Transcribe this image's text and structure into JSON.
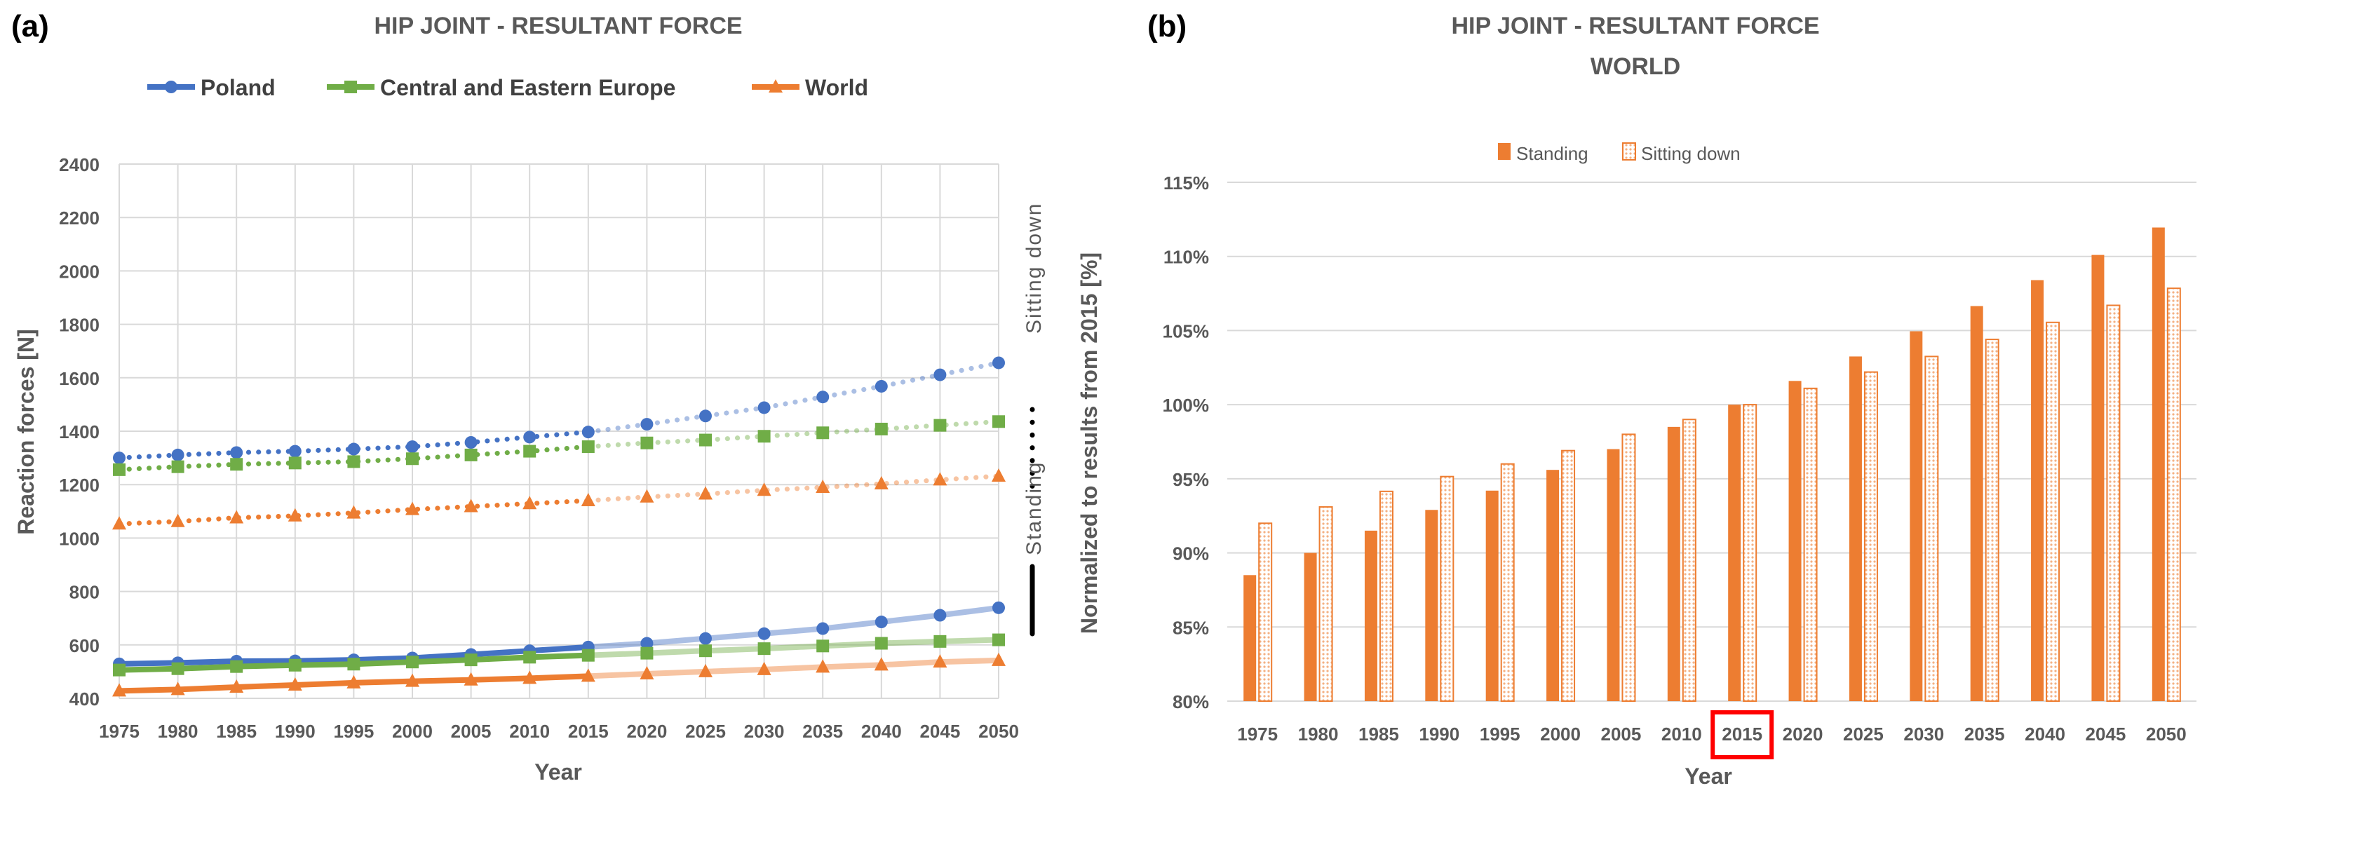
{
  "chart_data": [
    {
      "type": "line",
      "panel_label": "(a)",
      "title": "HIP JOINT - RESULTANT FORCE",
      "xlabel": "Year",
      "ylabel": "Reaction forces [N]",
      "ylim": [
        400,
        2400
      ],
      "yticks": [
        400,
        600,
        800,
        1000,
        1200,
        1400,
        1600,
        1800,
        2000,
        2200,
        2400
      ],
      "x": [
        1975,
        1980,
        1985,
        1990,
        1995,
        2000,
        2005,
        2010,
        2015,
        2020,
        2025,
        2030,
        2035,
        2040,
        2045,
        2050
      ],
      "grid": true,
      "legend_position": "top",
      "side_labels": {
        "sitting": "Sitting down",
        "standing": "Standing"
      },
      "series": [
        {
          "name": "Poland",
          "color": "#4472C4",
          "marker": "circle",
          "standing": [
            529,
            533,
            539,
            540,
            544,
            551,
            564,
            578,
            592,
            606,
            624,
            642,
            661,
            686,
            711,
            739
          ],
          "sitting": [
            1300,
            1311,
            1320,
            1325,
            1333,
            1342,
            1358,
            1378,
            1397,
            1426,
            1457,
            1488,
            1528,
            1568,
            1611,
            1656
          ]
        },
        {
          "name": "Central and Eastern Europe",
          "color": "#70AD47",
          "marker": "square",
          "standing": [
            506,
            511,
            519,
            524,
            528,
            536,
            544,
            554,
            561,
            569,
            578,
            586,
            596,
            606,
            613,
            619
          ],
          "sitting": [
            1256,
            1267,
            1276,
            1281,
            1286,
            1297,
            1311,
            1325,
            1342,
            1356,
            1367,
            1381,
            1394,
            1408,
            1422,
            1436
          ]
        },
        {
          "name": "World",
          "color": "#ED7D31",
          "marker": "triangle",
          "standing": [
            428,
            433,
            442,
            450,
            458,
            464,
            469,
            475,
            483,
            492,
            500,
            508,
            517,
            525,
            536,
            542
          ],
          "sitting": [
            1053,
            1062,
            1076,
            1083,
            1094,
            1107,
            1118,
            1129,
            1140,
            1154,
            1165,
            1179,
            1190,
            1203,
            1218,
            1232
          ]
        }
      ]
    },
    {
      "type": "bar",
      "panel_label": "(b)",
      "title": "HIP JOINT - RESULTANT FORCE",
      "subtitle": "WORLD",
      "xlabel": "Year",
      "ylabel": "Normalized to results from 2015 [%]",
      "ylim": [
        80,
        115
      ],
      "yticks": [
        "80%",
        "85%",
        "90%",
        "95%",
        "100%",
        "105%",
        "110%",
        "115%"
      ],
      "categories": [
        "1975",
        "1980",
        "1985",
        "1990",
        "1995",
        "2000",
        "2005",
        "2010",
        "2015",
        "2020",
        "2025",
        "2030",
        "2035",
        "2040",
        "2045",
        "2050"
      ],
      "highlighted_category": "2015",
      "highlight_color": "#FF0000",
      "grid": true,
      "legend_position": "top",
      "series": [
        {
          "name": "Standing",
          "color": "#ED7D31",
          "fill": "solid",
          "values": [
            88.5,
            90.0,
            91.5,
            92.9,
            94.2,
            95.6,
            97.0,
            98.5,
            100.0,
            101.6,
            103.25,
            104.95,
            106.65,
            108.4,
            110.1,
            111.95
          ]
        },
        {
          "name": "Sitting down",
          "color": "#ED7D31",
          "fill": "dotted",
          "values": [
            92.0,
            93.1,
            94.15,
            95.15,
            96.0,
            96.9,
            98.0,
            99.0,
            100.0,
            101.1,
            102.2,
            103.25,
            104.4,
            105.55,
            106.7,
            107.85
          ]
        }
      ]
    }
  ]
}
